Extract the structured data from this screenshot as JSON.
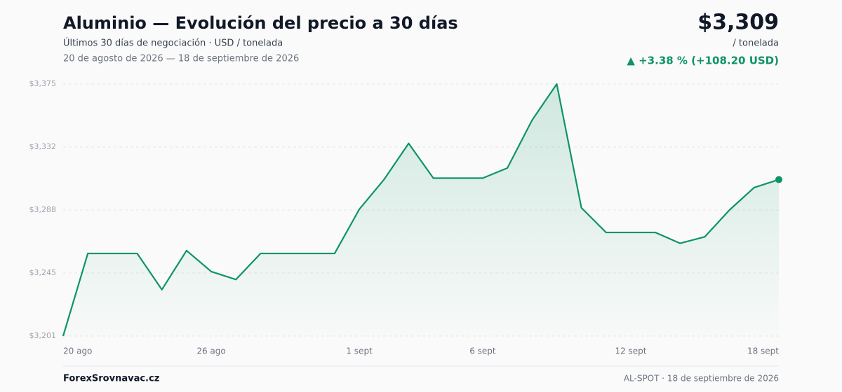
{
  "header": {
    "title": "Aluminio — Evolución del precio a 30 días",
    "subtitle": "Últimos 30 días de negociación · USD / tonelada",
    "range": "20 de agosto de 2026 — 18 de septiembre de 2026",
    "price": "$3,309",
    "unit": "/ tonelada",
    "change": "▲ +3.38 % (+108.20 USD)"
  },
  "footer": {
    "brand": "ForexSrovnavac.cz",
    "source": "AL-SPOT · 18 de septiembre de 2026"
  },
  "chart_data": {
    "type": "line",
    "color": "#0e9466",
    "grid": true,
    "categories": [
      "20 ago",
      null,
      null,
      null,
      null,
      null,
      "26 ago",
      null,
      null,
      null,
      null,
      null,
      "1 sept",
      null,
      null,
      null,
      null,
      "6 sept",
      null,
      null,
      null,
      null,
      null,
      "12 sept",
      null,
      null,
      null,
      null,
      null,
      "18 sept"
    ],
    "series": [
      {
        "name": "Aluminio",
        "color": "#0e9466",
        "values": [
          3201,
          3258,
          3258,
          3258,
          3233,
          3260,
          3245.5,
          3240,
          3258,
          3258,
          3258,
          3258,
          3288.5,
          3309,
          3334,
          3310,
          3310,
          3310,
          3317,
          3350,
          3375,
          3289.5,
          3272.5,
          3272.5,
          3272.5,
          3265,
          3269.5,
          3288,
          3303.5,
          3309
        ]
      }
    ],
    "ylim": [
      3201,
      3375
    ],
    "yticks": [
      {
        "value": 3201,
        "label": "$3,201"
      },
      {
        "value": 3244.5,
        "label": "$3,245"
      },
      {
        "value": 3288,
        "label": "$3,288"
      },
      {
        "value": 3331.5,
        "label": "$3,332"
      },
      {
        "value": 3375,
        "label": "$3,375"
      }
    ]
  }
}
